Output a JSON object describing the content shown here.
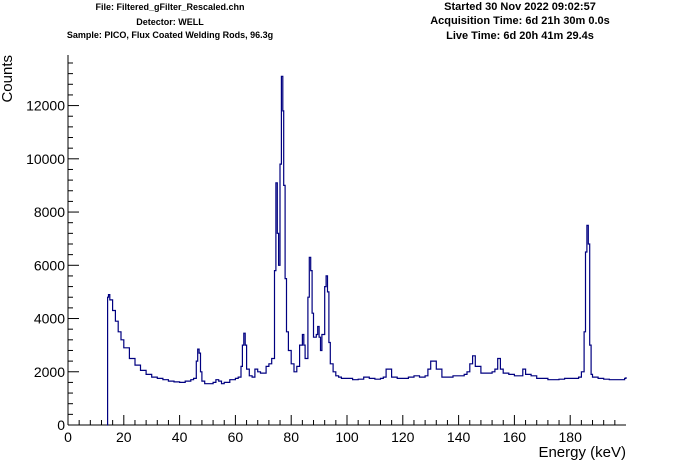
{
  "header": {
    "file": "File: Filtered_gFilter_Rescaled.chn",
    "detector": "Detector: WELL",
    "sample": "Sample: PICO, Flux Coated Welding Rods, 96.3g",
    "started": "Started 30 Nov 2022 09:02:57",
    "acquisition": "Acquisition Time: 6d 21h 30m 0.0s",
    "live": "Live Time: 6d 20h 41m 29.4s"
  },
  "colors": {
    "spectrum": "#000080",
    "axis": "#000000"
  },
  "chart_data": {
    "type": "line",
    "title": "",
    "xlabel": "Energy (keV)",
    "ylabel": "Counts",
    "xlim": [
      0,
      200
    ],
    "ylim": [
      0,
      13900
    ],
    "x_ticks": [
      0,
      20,
      40,
      60,
      80,
      100,
      120,
      140,
      160,
      180
    ],
    "y_ticks": [
      0,
      2000,
      4000,
      6000,
      8000,
      10000,
      12000
    ],
    "grid": false,
    "legend": "none",
    "series": [
      {
        "x": [
          14.0,
          14.2,
          14.5,
          15,
          16,
          17,
          18,
          19,
          20,
          22,
          24,
          26,
          28,
          30,
          32,
          34,
          36,
          38,
          40,
          42,
          44,
          45,
          46,
          46.5,
          47,
          47.5,
          48,
          49,
          50,
          52,
          53,
          54,
          55,
          56,
          58,
          60,
          61,
          62,
          62.5,
          63,
          63.5,
          64,
          65,
          66,
          67,
          68,
          69,
          70,
          71,
          72,
          73,
          74,
          74.5,
          75,
          75.5,
          76,
          76.5,
          77,
          77.3,
          77.8,
          78.3,
          79,
          80,
          81,
          82,
          83,
          84,
          84.5,
          85,
          86,
          86.5,
          87,
          87.5,
          88,
          89,
          89.5,
          90,
          90.5,
          91,
          92,
          92.5,
          93,
          93.5,
          94,
          95,
          96,
          97,
          98,
          100,
          102,
          104,
          106,
          108,
          110,
          112,
          113,
          114,
          116,
          118,
          120,
          122,
          124,
          126,
          128,
          129,
          130,
          132,
          134,
          136,
          138,
          140,
          142,
          143,
          144,
          145,
          146,
          148,
          150,
          152,
          153,
          154,
          155,
          156,
          158,
          160,
          162,
          163,
          164,
          166,
          168,
          170,
          172,
          174,
          176,
          178,
          180,
          182,
          183,
          184,
          185,
          185.5,
          186,
          186.5,
          187,
          187.5,
          188,
          190,
          192,
          194,
          196,
          198,
          199.5,
          200
        ],
        "values": [
          0,
          4800,
          4900,
          4700,
          4300,
          3900,
          3500,
          3200,
          2900,
          2500,
          2250,
          2050,
          1900,
          1800,
          1750,
          1700,
          1650,
          1620,
          1600,
          1650,
          1700,
          1750,
          2400,
          2850,
          2700,
          2000,
          1650,
          1550,
          1550,
          1600,
          1700,
          1650,
          1550,
          1600,
          1700,
          1750,
          1800,
          2200,
          3000,
          3450,
          3000,
          2100,
          1850,
          1800,
          2100,
          2000,
          1950,
          1950,
          2200,
          2300,
          2500,
          5800,
          9100,
          7200,
          6000,
          9800,
          13100,
          11800,
          9000,
          5500,
          3500,
          2800,
          2300,
          2000,
          2200,
          3000,
          3400,
          3000,
          2500,
          4800,
          6300,
          5800,
          4200,
          3300,
          3400,
          3700,
          3300,
          2800,
          3400,
          5200,
          5600,
          5000,
          3100,
          2300,
          2000,
          1850,
          1800,
          1750,
          1750,
          1700,
          1720,
          1800,
          1750,
          1720,
          1750,
          1800,
          2100,
          1800,
          1750,
          1750,
          1800,
          1850,
          1800,
          1850,
          2100,
          2400,
          2100,
          1800,
          1800,
          1850,
          1850,
          1900,
          2000,
          2300,
          2600,
          2200,
          1950,
          1950,
          2000,
          2100,
          2500,
          2100,
          1950,
          1900,
          1850,
          1850,
          2100,
          1900,
          1850,
          1750,
          1750,
          1700,
          1700,
          1720,
          1750,
          1750,
          1750,
          1800,
          2000,
          3500,
          6500,
          7500,
          6800,
          3000,
          1900,
          1800,
          1750,
          1720,
          1700,
          1700,
          1700,
          1750,
          1800
        ]
      }
    ]
  }
}
